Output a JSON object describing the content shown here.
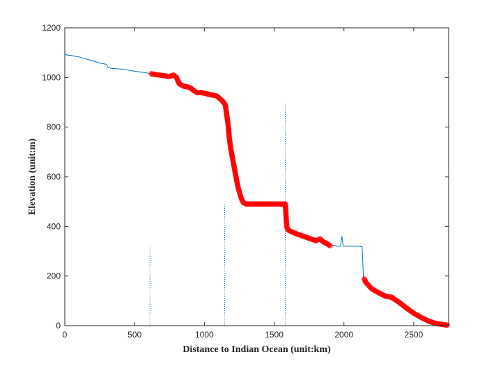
{
  "chart_data": {
    "type": "line",
    "title": "",
    "xlabel": "Distance to Indian Ocean (unit:km)",
    "ylabel": "Elevation (unit:m)",
    "xlim": [
      0,
      2750
    ],
    "ylim": [
      0,
      1200
    ],
    "xticks": [
      0,
      500,
      1000,
      1500,
      2000,
      2500
    ],
    "yticks": [
      0,
      200,
      400,
      600,
      800,
      1000,
      1200
    ],
    "grid": false,
    "legend": "none",
    "colors": {
      "profile": "#0072BD",
      "highlight": "#FF0000",
      "marker_lines": "#0072BD"
    },
    "series": [
      {
        "style": "line",
        "x": [
          0,
          50,
          100,
          150,
          200,
          250,
          300,
          310,
          330,
          400,
          450,
          500,
          550,
          600,
          650,
          700,
          750,
          800,
          850,
          900,
          950,
          1000,
          1050,
          1100,
          1150,
          1160,
          1170,
          1180,
          1200,
          1220,
          1250,
          1280,
          1300,
          1350,
          1400,
          1450,
          1500,
          1550,
          1580,
          1590,
          1600,
          1650,
          1700,
          1750,
          1800,
          1850,
          1900,
          1950,
          1975,
          1985,
          1995,
          2000,
          2050,
          2100,
          2130,
          2135,
          2140,
          2150,
          2200,
          2250,
          2300,
          2350,
          2400,
          2450,
          2500,
          2550,
          2600,
          2650,
          2700,
          2740
        ],
        "y": [
          1092,
          1088,
          1083,
          1075,
          1067,
          1058,
          1053,
          1040,
          1037,
          1034,
          1030,
          1025,
          1021,
          1017,
          1014,
          1010,
          1005,
          1000,
          970,
          960,
          942,
          940,
          935,
          930,
          900,
          890,
          850,
          780,
          700,
          640,
          560,
          510,
          492,
          490,
          490,
          490,
          490,
          490,
          490,
          395,
          385,
          372,
          362,
          352,
          342,
          335,
          327,
          320,
          320,
          360,
          320,
          320,
          320,
          320,
          318,
          250,
          190,
          180,
          150,
          133,
          118,
          105,
          85,
          65,
          48,
          32,
          20,
          10,
          5,
          3
        ]
      },
      {
        "style": "markers",
        "x": [
          620,
          650,
          700,
          750,
          780,
          800,
          820,
          850,
          880,
          900,
          930,
          950,
          970,
          1090,
          1110,
          1130,
          1150,
          1160,
          1170,
          1175,
          1180,
          1190,
          1200,
          1210,
          1220,
          1230,
          1240,
          1250,
          1260,
          1270,
          1280,
          1290,
          1300,
          1330,
          1350,
          1400,
          1450,
          1500,
          1550,
          1580,
          1590,
          1600,
          1650,
          1700,
          1750,
          1800,
          1830,
          1850,
          1880,
          1900,
          2145,
          2160,
          2180,
          2200,
          2250,
          2300,
          2340,
          2400,
          2450,
          2500,
          2550,
          2600,
          2650,
          2700,
          2740
        ],
        "y": [
          1015,
          1012,
          1008,
          1004,
          1010,
          1000,
          975,
          965,
          962,
          958,
          945,
          938,
          940,
          925,
          915,
          905,
          890,
          850,
          810,
          780,
          750,
          710,
          680,
          650,
          620,
          590,
          560,
          540,
          520,
          505,
          495,
          492,
          490,
          490,
          490,
          490,
          490,
          490,
          490,
          490,
          400,
          385,
          372,
          362,
          352,
          342,
          350,
          338,
          330,
          322,
          188,
          172,
          160,
          148,
          132,
          118,
          115,
          92,
          70,
          50,
          34,
          20,
          10,
          5,
          2
        ]
      },
      {
        "style": "dotted-verticals",
        "x": [
          610,
          1145,
          1580
        ],
        "y_top": [
          325,
          490,
          895
        ]
      }
    ]
  }
}
